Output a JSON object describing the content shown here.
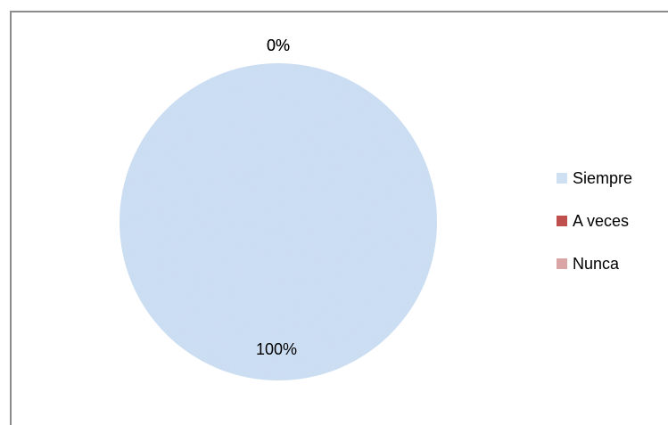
{
  "chart_data": {
    "type": "pie",
    "categories": [
      "Siempre",
      "A veces",
      "Nunca"
    ],
    "values": [
      100,
      0,
      0
    ],
    "data_labels": [
      "100%",
      "0%",
      "0%"
    ],
    "colors": {
      "Siempre": "#cfe0f3",
      "A veces": "#c0504d",
      "Nunca": "#d9a6a5"
    },
    "legend_position": "right",
    "grid": false
  }
}
